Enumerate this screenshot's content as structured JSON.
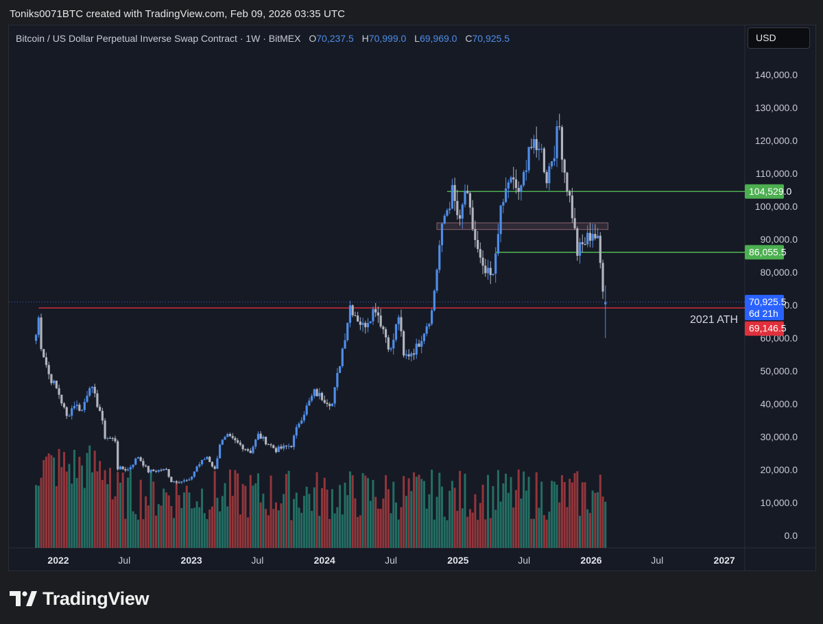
{
  "caption": "Toniks0071BTC created with TradingView.com, Feb 09, 2026 03:35 UTC",
  "legend": {
    "symbol": "Bitcoin / US Dollar Perpetual Inverse Swap Contract · 1W · BitMEX",
    "o_key": "O",
    "o_val": "70,237.5",
    "h_key": "H",
    "h_val": "70,999.0",
    "l_key": "L",
    "l_val": "69,969.0",
    "c_key": "C",
    "c_val": "70,925.5"
  },
  "currency_button": "USD",
  "brand": "TradingView",
  "colors": {
    "up": "#4f8de8",
    "down": "#b2b5be",
    "vol_up": "#26786c",
    "vol_down": "#a13a3e",
    "level_green": "#4caf50",
    "ath_red": "#e0303c",
    "zone": "#7a5a66"
  },
  "chart_data": {
    "type": "candlestick",
    "timeframe": "1W",
    "ylim": [
      0,
      148000
    ],
    "y_ticks": [
      "140,000.0",
      "130,000.0",
      "120,000.0",
      "110,000.0",
      "100,000.0",
      "90,000.0",
      "80,000.0",
      "70,000.0",
      "60,000.0",
      "50,000.0",
      "40,000.0",
      "30,000.0",
      "20,000.0",
      "10,000.0",
      "0.0"
    ],
    "x_ticks": [
      "2022",
      "Jul",
      "2023",
      "Jul",
      "2024",
      "Jul",
      "2025",
      "Jul",
      "2026",
      "Jul",
      "2027"
    ],
    "current_price": {
      "value": 70925.5,
      "label": "70,925.5",
      "countdown": "6d 21h"
    },
    "levels": [
      {
        "value": 104529.0,
        "label": "104,529.0",
        "kind": "support"
      },
      {
        "value": 86055.5,
        "label": "86,055.5",
        "kind": "support"
      },
      {
        "value": 69146.5,
        "label": "69,146.5",
        "kind": "ath",
        "note": "2021 ATH"
      }
    ],
    "zone": {
      "low": 93000,
      "high": 95000
    },
    "price_path": [
      [
        "2021-11-01",
        61000
      ],
      [
        "2021-11-08",
        66000
      ],
      [
        "2021-11-15",
        58000
      ],
      [
        "2021-12-06",
        49000
      ],
      [
        "2022-01-03",
        43000
      ],
      [
        "2022-01-24",
        36000
      ],
      [
        "2022-02-14",
        40000
      ],
      [
        "2022-03-07",
        38000
      ],
      [
        "2022-03-28",
        46000
      ],
      [
        "2022-04-25",
        38000
      ],
      [
        "2022-05-09",
        30000
      ],
      [
        "2022-06-06",
        29000
      ],
      [
        "2022-06-13",
        20500
      ],
      [
        "2022-07-11",
        20000
      ],
      [
        "2022-08-08",
        24000
      ],
      [
        "2022-09-05",
        19500
      ],
      [
        "2022-10-24",
        20000
      ],
      [
        "2022-11-07",
        16500
      ],
      [
        "2022-12-26",
        16600
      ],
      [
        "2023-01-16",
        21000
      ],
      [
        "2023-02-13",
        24000
      ],
      [
        "2023-03-06",
        20000
      ],
      [
        "2023-03-20",
        28000
      ],
      [
        "2023-04-10",
        30000
      ],
      [
        "2023-06-12",
        25500
      ],
      [
        "2023-07-03",
        30500
      ],
      [
        "2023-08-21",
        26000
      ],
      [
        "2023-10-02",
        27500
      ],
      [
        "2023-10-23",
        34500
      ],
      [
        "2023-12-04",
        43500
      ],
      [
        "2024-01-22",
        40000
      ],
      [
        "2024-02-26",
        61000
      ],
      [
        "2024-03-11",
        70000
      ],
      [
        "2024-04-15",
        63500
      ],
      [
        "2024-05-20",
        69500
      ],
      [
        "2024-07-01",
        56000
      ],
      [
        "2024-07-22",
        67000
      ],
      [
        "2024-08-05",
        54000
      ],
      [
        "2024-09-09",
        57000
      ],
      [
        "2024-10-21",
        68000
      ],
      [
        "2024-11-11",
        88000
      ],
      [
        "2024-11-25",
        97000
      ],
      [
        "2024-12-16",
        104000
      ],
      [
        "2025-01-06",
        94000
      ],
      [
        "2025-01-20",
        105000
      ],
      [
        "2025-02-24",
        86000
      ],
      [
        "2025-03-10",
        80000
      ],
      [
        "2025-04-07",
        78000
      ],
      [
        "2025-04-21",
        94000
      ],
      [
        "2025-05-19",
        108000
      ],
      [
        "2025-06-23",
        104000
      ],
      [
        "2025-07-14",
        119000
      ],
      [
        "2025-08-04",
        116000
      ],
      [
        "2025-08-11",
        120000
      ],
      [
        "2025-09-01",
        109000
      ],
      [
        "2025-10-06",
        124000
      ],
      [
        "2025-10-20",
        111000
      ],
      [
        "2025-11-10",
        98000
      ],
      [
        "2025-11-24",
        86000
      ],
      [
        "2025-12-15",
        89000
      ],
      [
        "2026-01-05",
        92500
      ],
      [
        "2026-01-19",
        89000
      ],
      [
        "2026-02-02",
        76000
      ],
      [
        "2026-02-09",
        70925
      ]
    ]
  }
}
